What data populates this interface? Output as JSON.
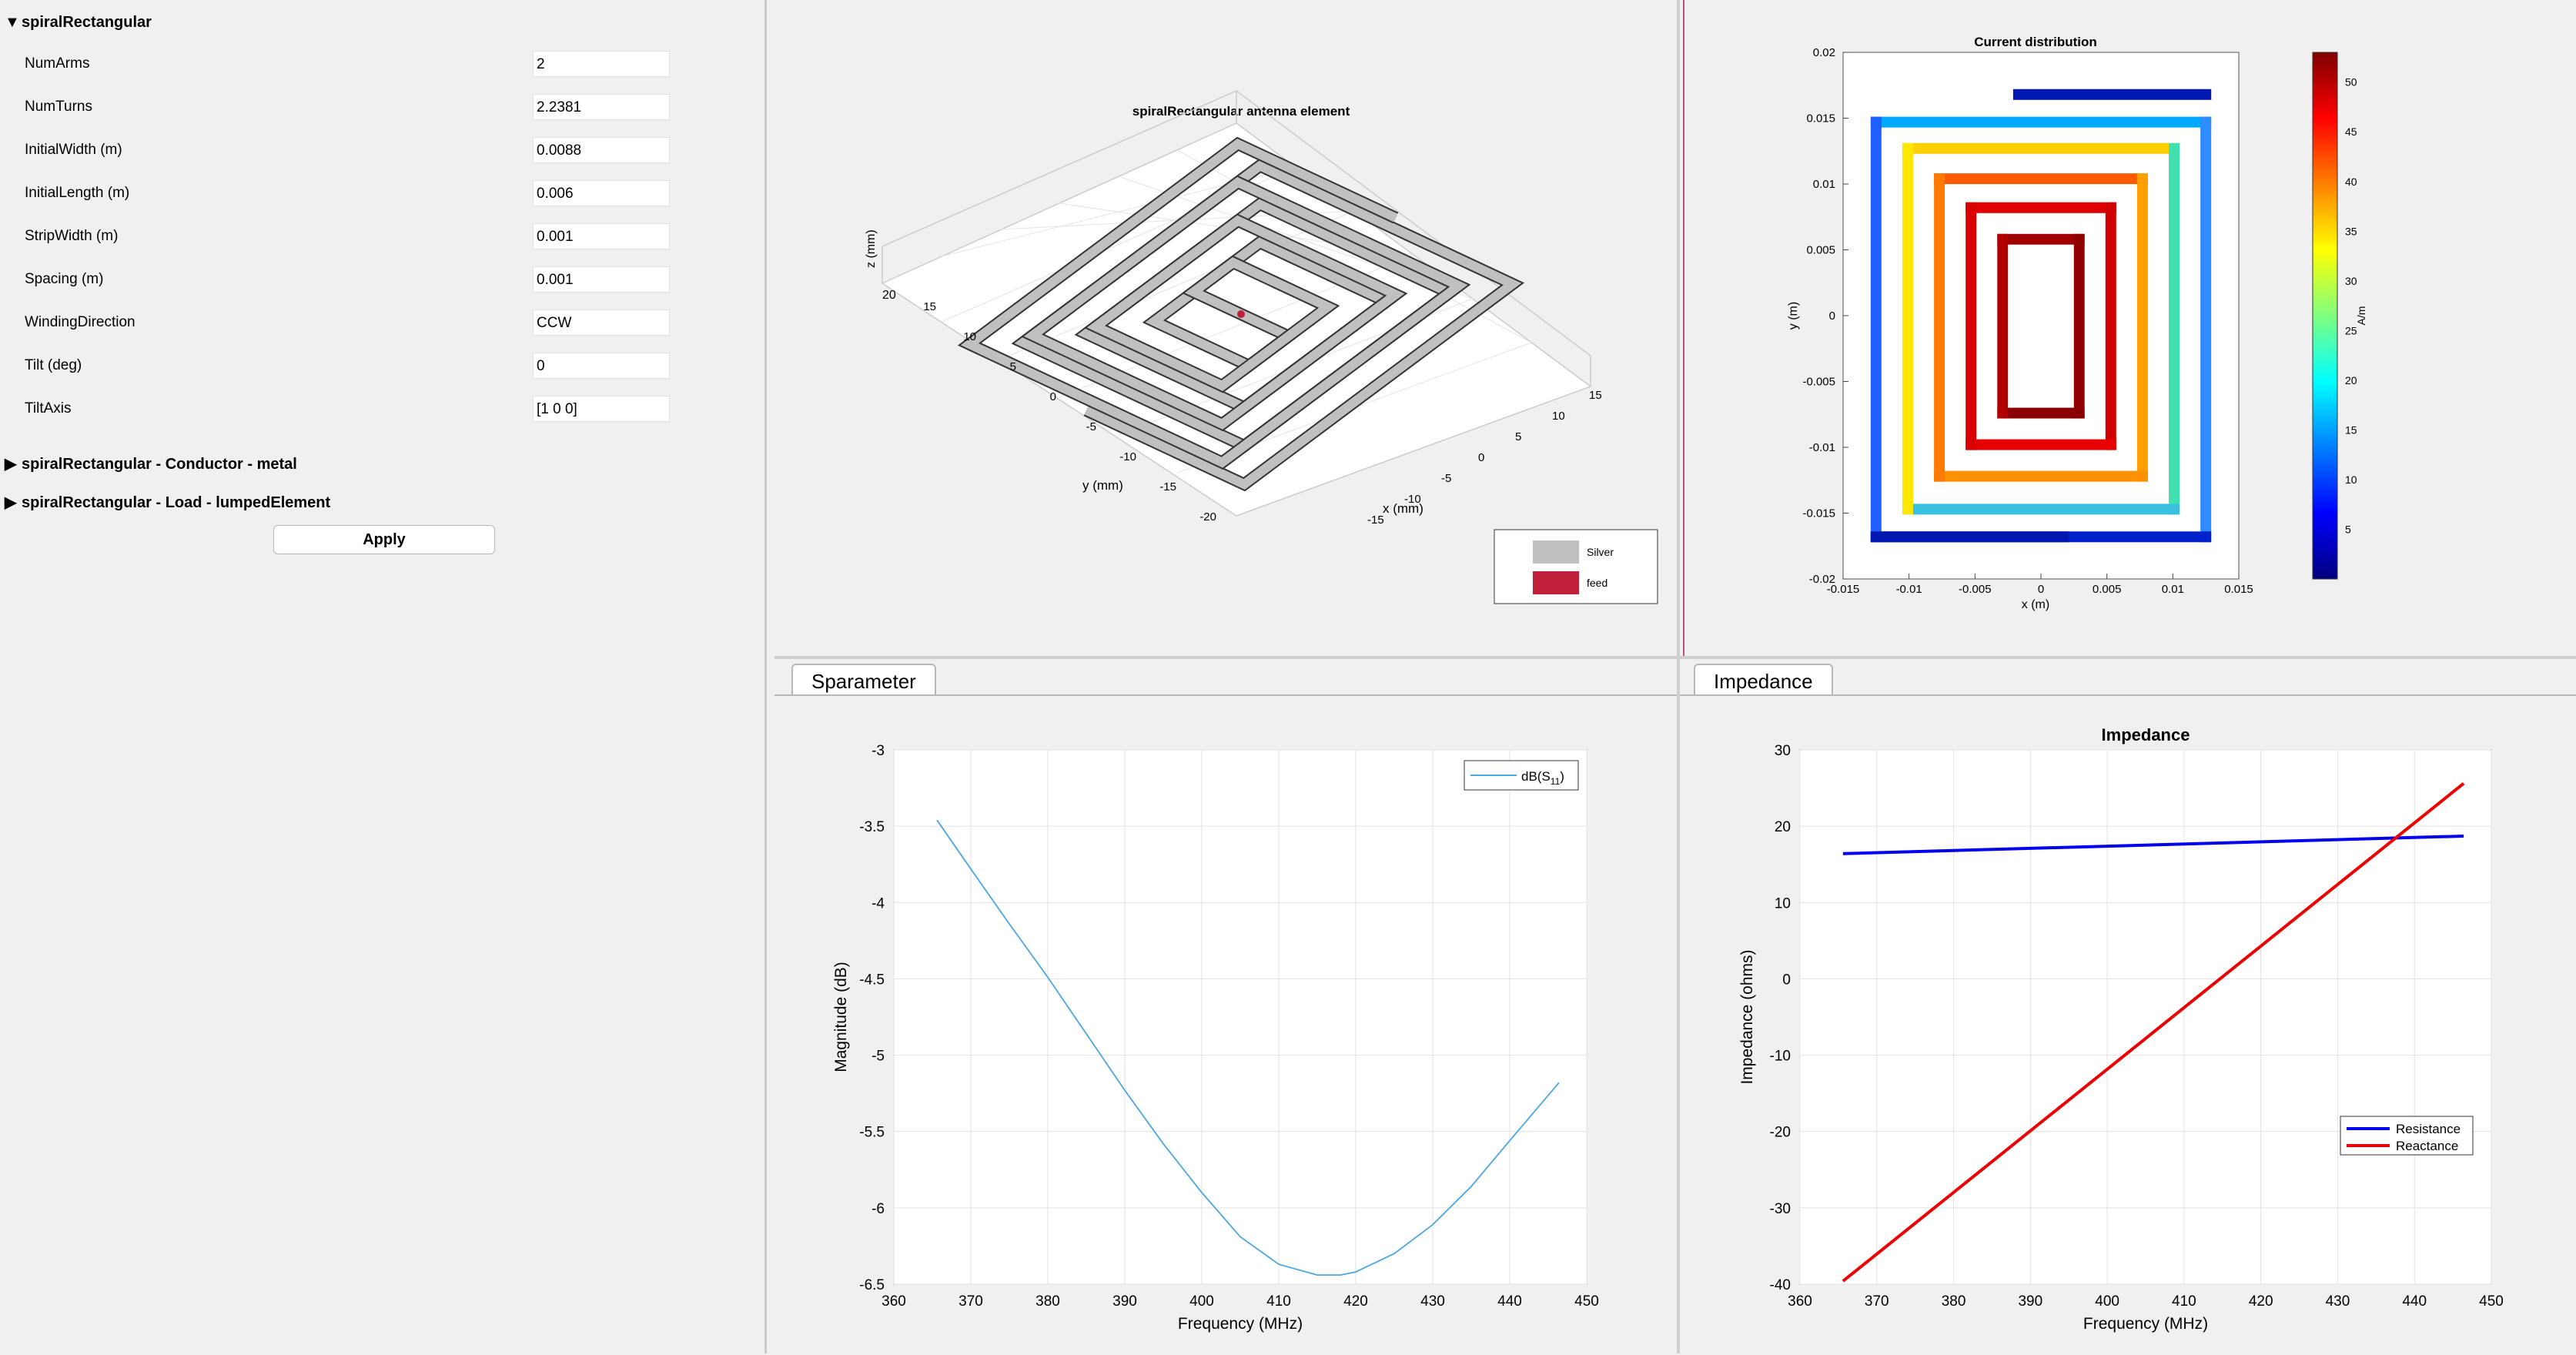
{
  "properties": {
    "section_title": "spiralRectangular",
    "items": [
      {
        "label": "NumArms",
        "value": "2"
      },
      {
        "label": "NumTurns",
        "value": "2.2381"
      },
      {
        "label": "InitialWidth (m)",
        "value": "0.0088"
      },
      {
        "label": "InitialLength (m)",
        "value": "0.006"
      },
      {
        "label": "StripWidth (m)",
        "value": "0.001"
      },
      {
        "label": "Spacing (m)",
        "value": "0.001"
      },
      {
        "label": "WindingDirection",
        "value": "CCW"
      },
      {
        "label": "Tilt (deg)",
        "value": "0"
      },
      {
        "label": "TiltAxis",
        "value": "[1 0 0]"
      }
    ],
    "conductor_section": "spiralRectangular - Conductor - metal",
    "load_section": "spiralRectangular - Load - lumpedElement",
    "apply_label": "Apply",
    "expanded_icon": "triangle-down-icon",
    "collapsed_icon": "triangle-right-icon"
  },
  "geometry_plot": {
    "title": "spiralRectangular antenna element",
    "xlabel": "x (mm)",
    "ylabel": "y (mm)",
    "zlabel": "z (mm)",
    "x_ticks": [
      "-15",
      "-10",
      "-5",
      "0",
      "5",
      "10",
      "15"
    ],
    "y_ticks": [
      "-20",
      "-15",
      "-10",
      "-5",
      "0",
      "5",
      "10",
      "15",
      "20"
    ],
    "z_ticks": [
      "20"
    ],
    "legend": [
      {
        "label": "Silver",
        "color": "#bfbfbf"
      },
      {
        "label": "feed",
        "color": "#c0203a"
      }
    ]
  },
  "current_plot": {
    "title": "Current distribution",
    "xlabel": "x (m)",
    "ylabel": "y (m)",
    "x_ticks": [
      "-0.015",
      "-0.01",
      "-0.005",
      "0",
      "0.005",
      "0.01",
      "0.015"
    ],
    "y_ticks": [
      "0.02",
      "0.015",
      "0.01",
      "0.005",
      "0",
      "-0.005",
      "-0.01",
      "-0.015",
      "-0.02"
    ],
    "colorbar_label": "A/m",
    "colorbar_ticks": [
      "50",
      "45",
      "40",
      "35",
      "30",
      "25",
      "20",
      "15",
      "10",
      "5"
    ],
    "colorbar_range": [
      0,
      53
    ]
  },
  "tabs": {
    "sparameter": "Sparameter",
    "impedance": "Impedance"
  },
  "chart_data": [
    {
      "type": "line",
      "title": "",
      "xlabel": "Frequency (MHz)",
      "ylabel": "Magnitude (dB)",
      "xlim": [
        360,
        450
      ],
      "ylim": [
        -6.5,
        -3
      ],
      "x_ticks": [
        "360",
        "370",
        "380",
        "390",
        "400",
        "410",
        "420",
        "430",
        "440",
        "450"
      ],
      "y_ticks": [
        "-3",
        "-3.5",
        "-4",
        "-4.5",
        "-5",
        "-5.5",
        "-6",
        "-6.5"
      ],
      "grid": true,
      "legend_position": "top-right",
      "series": [
        {
          "name": "dB(S11)",
          "color": "#4da6e0",
          "x": [
            365.6,
            370,
            375,
            380,
            385,
            390,
            395,
            400,
            405,
            410,
            415,
            418,
            420,
            425,
            430,
            435,
            440,
            446.4
          ],
          "y": [
            -3.46,
            -3.78,
            -4.14,
            -4.49,
            -4.86,
            -5.23,
            -5.58,
            -5.9,
            -6.19,
            -6.37,
            -6.44,
            -6.44,
            -6.42,
            -6.3,
            -6.11,
            -5.86,
            -5.56,
            -5.18
          ]
        }
      ]
    },
    {
      "type": "line",
      "title": "Impedance",
      "xlabel": "Frequency (MHz)",
      "ylabel": "Impedance (ohms)",
      "xlim": [
        360,
        450
      ],
      "ylim": [
        -40,
        30
      ],
      "x_ticks": [
        "360",
        "370",
        "380",
        "390",
        "400",
        "410",
        "420",
        "430",
        "440",
        "450"
      ],
      "y_ticks": [
        "30",
        "20",
        "10",
        "0",
        "-10",
        "-20",
        "-30",
        "-40"
      ],
      "grid": true,
      "legend_position": "bottom-right",
      "series": [
        {
          "name": "Resistance",
          "color": "#0000ee",
          "x": [
            365.6,
            446.4
          ],
          "y": [
            16.4,
            18.7
          ]
        },
        {
          "name": "Reactance",
          "color": "#ee0000",
          "x": [
            365.6,
            446.4
          ],
          "y": [
            -39.6,
            25.6
          ]
        }
      ]
    }
  ]
}
